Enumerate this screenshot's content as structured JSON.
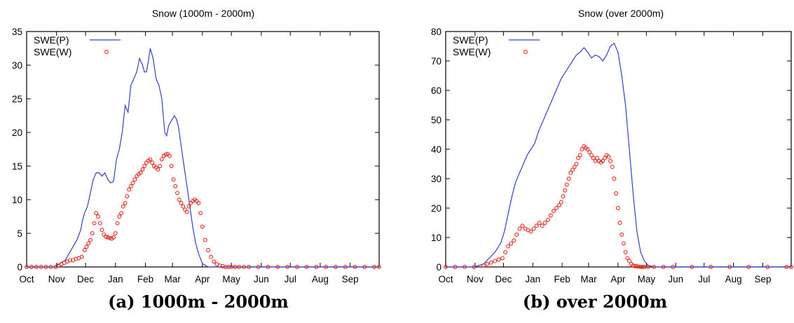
{
  "colors": {
    "line": "#3340c8",
    "points": "#e8281e",
    "axis": "#000000"
  },
  "captions": [
    "(a) 1000m - 2000m",
    "(b) over 2000m"
  ],
  "chart_data": [
    {
      "type": "line",
      "title": "Snow (1000m - 2000m)",
      "xlabel": "",
      "ylabel": "",
      "xlim": [
        0,
        365
      ],
      "ylim": [
        0,
        35
      ],
      "yticks": [
        0,
        5,
        10,
        15,
        20,
        25,
        30,
        35
      ],
      "x_tick_labels": [
        "Oct",
        "Nov",
        "Dec",
        "Jan",
        "Feb",
        "Mar",
        "Apr",
        "May",
        "Jun",
        "Jul",
        "Aug",
        "Sep"
      ],
      "x_tick_days": [
        0,
        31,
        61,
        92,
        123,
        151,
        182,
        212,
        243,
        273,
        304,
        335
      ],
      "legend_position": "top-left",
      "grid": false,
      "series": [
        {
          "name": "SWE(P)",
          "style": "line",
          "x": [
            0,
            30,
            34,
            40,
            44,
            48,
            52,
            56,
            58,
            60,
            63,
            66,
            69,
            72,
            75,
            78,
            81,
            84,
            87,
            90,
            93,
            96,
            99,
            102,
            105,
            108,
            111,
            114,
            117,
            120,
            122,
            124,
            126,
            128,
            131,
            134,
            137,
            140,
            143,
            145,
            147,
            149,
            151,
            153,
            155,
            157,
            160,
            163,
            166,
            169,
            172,
            175,
            178,
            182,
            188,
            194,
            200,
            205,
            209,
            212,
            216,
            230,
            250,
            300,
            365
          ],
          "y": [
            0,
            0,
            0.5,
            1,
            2,
            3,
            4,
            5.5,
            7,
            8,
            9,
            11,
            13,
            14,
            14,
            13.5,
            14,
            13,
            12.5,
            12.7,
            16,
            17.5,
            20,
            24,
            23,
            27,
            28,
            29,
            31,
            30,
            29,
            29,
            30.5,
            32.5,
            31,
            28,
            27,
            25,
            20,
            19.5,
            21,
            21.5,
            22,
            22.5,
            22,
            21,
            18,
            15,
            12,
            9,
            6,
            3.5,
            2,
            0.5,
            0,
            0,
            0,
            0,
            0,
            0,
            0,
            0,
            0,
            0,
            0
          ]
        },
        {
          "name": "SWE(W)",
          "style": "points",
          "x": [
            0,
            5,
            10,
            15,
            20,
            25,
            30,
            33,
            36,
            39,
            42,
            45,
            48,
            51,
            54,
            57,
            60,
            62,
            64,
            66,
            68,
            70,
            72,
            74,
            76,
            78,
            80,
            82,
            84,
            86,
            88,
            90,
            92,
            94,
            96,
            98,
            100,
            102,
            104,
            106,
            108,
            110,
            112,
            114,
            116,
            118,
            120,
            122,
            124,
            126,
            128,
            130,
            132,
            134,
            136,
            138,
            140,
            142,
            144,
            146,
            148,
            150,
            152,
            154,
            156,
            158,
            160,
            162,
            164,
            166,
            168,
            170,
            172,
            174,
            176,
            178,
            180,
            182,
            185,
            188,
            191,
            194,
            197,
            200,
            203,
            206,
            209,
            212,
            216,
            220,
            225,
            230,
            240,
            250,
            260,
            270,
            280,
            290,
            300,
            310,
            320,
            330,
            340,
            350,
            360,
            365
          ],
          "y": [
            0,
            0,
            0,
            0,
            0,
            0,
            0,
            0.2,
            0.4,
            0.6,
            0.8,
            1,
            1,
            1.2,
            1.3,
            1.5,
            2.5,
            3,
            3.5,
            4,
            5,
            6.5,
            8,
            7.5,
            6.5,
            5.5,
            4.8,
            4.5,
            4.4,
            4.3,
            4.2,
            4.4,
            5,
            6.5,
            7.5,
            8,
            9,
            9.5,
            10.5,
            11.5,
            12,
            12.5,
            13,
            13.5,
            13.8,
            14,
            14.5,
            15,
            15.5,
            15.8,
            16,
            15.5,
            15,
            14.8,
            14.5,
            15,
            16,
            16.5,
            16.7,
            16.8,
            16.5,
            15,
            13,
            12,
            11,
            10,
            9.5,
            9,
            8.5,
            8.2,
            9,
            9.5,
            9.8,
            10,
            9.8,
            9.5,
            8,
            6,
            4,
            2.5,
            1.5,
            0.8,
            0.4,
            0.2,
            0.1,
            0,
            0,
            0,
            0,
            0,
            0,
            0,
            0,
            0,
            0,
            0,
            0,
            0,
            0,
            0,
            0,
            0,
            0,
            0,
            0,
            0
          ]
        }
      ]
    },
    {
      "type": "line",
      "title": "Snow (over 2000m)",
      "xlabel": "",
      "ylabel": "",
      "xlim": [
        0,
        365
      ],
      "ylim": [
        0,
        80
      ],
      "yticks": [
        0,
        10,
        20,
        30,
        40,
        50,
        60,
        70,
        80
      ],
      "x_tick_labels": [
        "Oct",
        "Nov",
        "Dec",
        "Jan",
        "Feb",
        "Mar",
        "Apr",
        "May",
        "Jun",
        "Jul",
        "Aug",
        "Sep"
      ],
      "x_tick_days": [
        0,
        31,
        61,
        92,
        123,
        151,
        182,
        212,
        243,
        273,
        304,
        335
      ],
      "legend_position": "top-left",
      "grid": false,
      "series": [
        {
          "name": "SWE(P)",
          "style": "line",
          "x": [
            0,
            30,
            40,
            46,
            52,
            58,
            62,
            66,
            70,
            74,
            78,
            82,
            86,
            90,
            94,
            98,
            102,
            106,
            110,
            114,
            118,
            122,
            126,
            130,
            134,
            138,
            142,
            146,
            150,
            154,
            158,
            162,
            166,
            170,
            174,
            178,
            182,
            186,
            190,
            194,
            198,
            202,
            206,
            210,
            214,
            220,
            230,
            250,
            300,
            365
          ],
          "y": [
            0,
            0,
            1,
            3,
            5,
            8,
            12,
            18,
            24,
            29,
            32,
            35,
            38,
            40,
            42,
            46,
            49,
            52,
            55,
            58,
            61,
            64,
            66,
            68,
            70,
            72,
            73,
            74.5,
            73,
            71,
            72,
            71.5,
            70,
            72,
            75,
            76,
            73,
            65,
            55,
            40,
            25,
            12,
            5,
            2,
            0.5,
            0,
            0,
            0,
            0,
            0
          ]
        },
        {
          "name": "SWE(W)",
          "style": "points",
          "x": [
            0,
            10,
            20,
            30,
            40,
            44,
            48,
            52,
            56,
            60,
            63,
            66,
            69,
            72,
            75,
            78,
            81,
            84,
            87,
            90,
            93,
            96,
            99,
            102,
            105,
            108,
            111,
            114,
            117,
            120,
            122,
            124,
            126,
            128,
            130,
            132,
            134,
            136,
            138,
            140,
            142,
            144,
            146,
            148,
            150,
            152,
            154,
            156,
            158,
            160,
            162,
            164,
            166,
            168,
            170,
            172,
            174,
            176,
            178,
            180,
            182,
            184,
            186,
            188,
            190,
            192,
            194,
            196,
            198,
            200,
            202,
            204,
            206,
            208,
            210,
            214,
            220,
            230,
            240,
            260,
            280,
            300,
            320,
            340,
            360,
            365
          ],
          "y": [
            0,
            0,
            0,
            0,
            0.5,
            1,
            1.5,
            2,
            2.5,
            3,
            5,
            7,
            8,
            9,
            11,
            13,
            14,
            13,
            12.5,
            12,
            13,
            14,
            15,
            14,
            15,
            16,
            17.5,
            19,
            20,
            21,
            22,
            24,
            26,
            28,
            30,
            32,
            33,
            34,
            35,
            37,
            38,
            40,
            41,
            40.5,
            40,
            39,
            38,
            37,
            36,
            37,
            36,
            35.5,
            36,
            37,
            38,
            37.5,
            36,
            34,
            30,
            25,
            20,
            15,
            11,
            8,
            5,
            3,
            2,
            1,
            0.5,
            0.3,
            0.2,
            0.1,
            0,
            0,
            0,
            0,
            0,
            0,
            0,
            0,
            0,
            0,
            0,
            0,
            0,
            0
          ]
        }
      ]
    }
  ]
}
